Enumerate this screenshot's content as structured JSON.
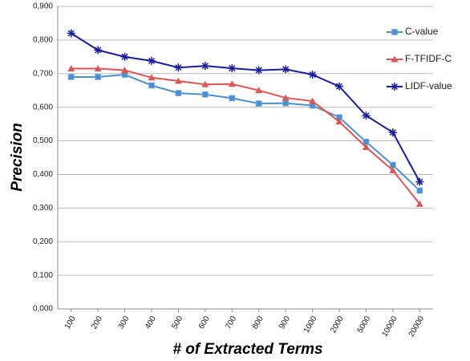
{
  "chart_data": {
    "type": "line",
    "y_label": "Precision",
    "x_label": "# of Extracted Terms",
    "categories": [
      "100",
      "200",
      "300",
      "400",
      "500",
      "600",
      "700",
      "800",
      "900",
      "1000",
      "2000",
      "5000",
      "10000",
      "20000"
    ],
    "series": [
      {
        "name": "C-value",
        "color": "#4a90d0",
        "marker": "square",
        "values": [
          0.69,
          0.69,
          0.697,
          0.665,
          0.642,
          0.638,
          0.627,
          0.611,
          0.612,
          0.605,
          0.57,
          0.497,
          0.428,
          0.352
        ]
      },
      {
        "name": "F-TFIDF-C",
        "color": "#dd5555",
        "marker": "triangle",
        "values": [
          0.715,
          0.715,
          0.71,
          0.688,
          0.678,
          0.668,
          0.669,
          0.65,
          0.628,
          0.618,
          0.557,
          0.481,
          0.412,
          0.312
        ]
      },
      {
        "name": "LIDF-value",
        "color": "#1c1c9c",
        "marker": "star",
        "values": [
          0.82,
          0.77,
          0.75,
          0.738,
          0.718,
          0.723,
          0.716,
          0.71,
          0.713,
          0.697,
          0.662,
          0.575,
          0.525,
          0.378
        ]
      }
    ],
    "ylim": [
      0,
      0.9
    ],
    "yticks": [
      {
        "value": 0,
        "label": "0,000"
      },
      {
        "value": 0.1,
        "label": "0,100"
      },
      {
        "value": 0.2,
        "label": "0,200"
      },
      {
        "value": 0.3,
        "label": "0,300"
      },
      {
        "value": 0.4,
        "label": "0,400"
      },
      {
        "value": 0.5,
        "label": "0,500"
      },
      {
        "value": 0.6,
        "label": "0,600"
      },
      {
        "value": 0.7,
        "label": "0,700"
      },
      {
        "value": 0.8,
        "label": "0,800"
      },
      {
        "value": 0.9,
        "label": "0,900"
      }
    ],
    "grid": true,
    "legend": "right"
  }
}
